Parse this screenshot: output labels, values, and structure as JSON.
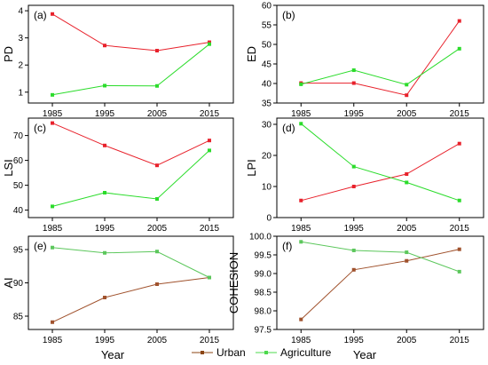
{
  "chart_data": [
    {
      "type": "line",
      "panel_label": "(a)",
      "ylabel": "PD",
      "x": [
        "1985",
        "1995",
        "2005",
        "2015"
      ],
      "ylim": [
        0.6,
        4.2
      ],
      "yticks": [
        1,
        2,
        3,
        4
      ],
      "series": [
        {
          "name": "Urban",
          "color": "#e8212b",
          "values": [
            3.88,
            2.72,
            2.53,
            2.84
          ]
        },
        {
          "name": "Agriculture",
          "color": "#2bdc2b",
          "values": [
            0.9,
            1.24,
            1.23,
            2.77
          ]
        }
      ]
    },
    {
      "type": "line",
      "panel_label": "(b)",
      "ylabel": "ED",
      "x": [
        "1985",
        "1995",
        "2005",
        "2015"
      ],
      "ylim": [
        35,
        60
      ],
      "yticks": [
        35,
        40,
        45,
        50,
        55,
        60
      ],
      "series": [
        {
          "name": "Urban",
          "color": "#e8212b",
          "values": [
            40.1,
            40.1,
            37.0,
            56.0
          ]
        },
        {
          "name": "Agriculture",
          "color": "#2bdc2b",
          "values": [
            39.8,
            43.4,
            39.7,
            48.9
          ]
        }
      ]
    },
    {
      "type": "line",
      "panel_label": "(c)",
      "ylabel": "LSI",
      "x": [
        "1985",
        "1995",
        "2005",
        "2015"
      ],
      "ylim": [
        37,
        77
      ],
      "yticks": [
        40,
        50,
        60,
        70
      ],
      "series": [
        {
          "name": "Urban",
          "color": "#e8212b",
          "values": [
            75.0,
            66.0,
            58.0,
            68.0
          ]
        },
        {
          "name": "Agriculture",
          "color": "#2bdc2b",
          "values": [
            41.5,
            47.0,
            44.5,
            64.0
          ]
        }
      ]
    },
    {
      "type": "line",
      "panel_label": "(d)",
      "ylabel": "LPI",
      "x": [
        "1985",
        "1995",
        "2005",
        "2015"
      ],
      "ylim": [
        0,
        32
      ],
      "yticks": [
        0,
        10,
        20,
        30
      ],
      "series": [
        {
          "name": "Urban",
          "color": "#e8212b",
          "values": [
            5.5,
            10.0,
            14.0,
            23.8
          ]
        },
        {
          "name": "Agriculture",
          "color": "#2bdc2b",
          "values": [
            30.2,
            16.4,
            11.3,
            5.5
          ]
        }
      ]
    },
    {
      "type": "line",
      "panel_label": "(e)",
      "ylabel": "AI",
      "x": [
        "1985",
        "1995",
        "2005",
        "2015"
      ],
      "ylim": [
        83,
        97
      ],
      "yticks": [
        85,
        90,
        95
      ],
      "series": [
        {
          "name": "Urban",
          "color": "#a0522d",
          "values": [
            84.1,
            87.8,
            89.8,
            90.8
          ]
        },
        {
          "name": "Agriculture",
          "color": "#5cc75c",
          "values": [
            95.3,
            94.5,
            94.7,
            90.8
          ]
        }
      ]
    },
    {
      "type": "line",
      "panel_label": "(f)",
      "ylabel": "COHESION",
      "x": [
        "1985",
        "1995",
        "2005",
        "2015"
      ],
      "ylim": [
        97.5,
        100.0
      ],
      "yticks": [
        97.5,
        98.0,
        98.5,
        99.0,
        99.5,
        100.0
      ],
      "series": [
        {
          "name": "Urban",
          "color": "#a0522d",
          "values": [
            97.77,
            99.1,
            99.34,
            99.65
          ]
        },
        {
          "name": "Agriculture",
          "color": "#5cc75c",
          "values": [
            99.85,
            99.62,
            99.57,
            99.05
          ]
        }
      ]
    }
  ],
  "xlabel": "Year",
  "legend": [
    {
      "name": "Urban",
      "color": "#8b4513"
    },
    {
      "name": "Agriculture",
      "color": "#4cd94c"
    }
  ]
}
